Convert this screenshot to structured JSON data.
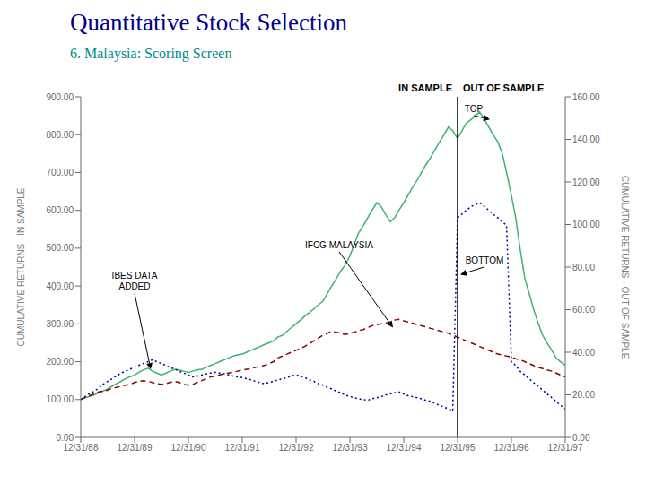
{
  "chart_data": {
    "type": "line",
    "title": "Quantitative Stock Selection",
    "subtitle": "6. Malaysia: Scoring Screen",
    "title_color": "#00008B",
    "subtitle_color": "#008B8B",
    "ylabel": "CUMULATIVE RETURNS - IN SAMPLE",
    "y2label": "CUMULATIVE RETURNS - OUT OF SAMPLE",
    "grid": false,
    "xlim": [
      0,
      9
    ],
    "xticks": [
      {
        "value": 0,
        "label": "12/31/88"
      },
      {
        "value": 1,
        "label": "12/31/89"
      },
      {
        "value": 2,
        "label": "12/31/90"
      },
      {
        "value": 3,
        "label": "12/31/91"
      },
      {
        "value": 4,
        "label": "12/31/92"
      },
      {
        "value": 5,
        "label": "12/31/93"
      },
      {
        "value": 6,
        "label": "12/31/94"
      },
      {
        "value": 7,
        "label": "12/31/95"
      },
      {
        "value": 8,
        "label": "12/31/96"
      },
      {
        "value": 9,
        "label": "12/31/97"
      }
    ],
    "ylim": [
      0,
      900
    ],
    "yticks": [
      {
        "value": 0,
        "label": "0.00"
      },
      {
        "value": 100,
        "label": "100.00"
      },
      {
        "value": 200,
        "label": "200.00"
      },
      {
        "value": 300,
        "label": "300.00"
      },
      {
        "value": 400,
        "label": "400.00"
      },
      {
        "value": 500,
        "label": "500.00"
      },
      {
        "value": 600,
        "label": "600.00"
      },
      {
        "value": 700,
        "label": "700.00"
      },
      {
        "value": 800,
        "label": "800.00"
      },
      {
        "value": 900,
        "label": "900.00"
      }
    ],
    "y2lim": [
      0,
      160
    ],
    "y2ticks": [
      {
        "value": 0,
        "label": "0.00"
      },
      {
        "value": 20,
        "label": "20.00"
      },
      {
        "value": 40,
        "label": "40.00"
      },
      {
        "value": 60,
        "label": "60.00"
      },
      {
        "value": 80,
        "label": "80.00"
      },
      {
        "value": 100,
        "label": "100.00"
      },
      {
        "value": 120,
        "label": "120.00"
      },
      {
        "value": 140,
        "label": "140.00"
      },
      {
        "value": 160,
        "label": "160.00"
      }
    ],
    "reference_lines": [
      {
        "x": 7,
        "label_left": "IN SAMPLE",
        "label_right": "OUT OF SAMPLE"
      }
    ],
    "annotations": [
      {
        "text": "TOP",
        "x": 7.3,
        "y": 860,
        "arrow_x": 7.6,
        "arrow_y": 840
      },
      {
        "text": "BOTTOM",
        "x": 7.5,
        "y": 460,
        "arrow_x": 7.05,
        "arrow_y": 430
      },
      {
        "text": "IFCG MALAYSIA",
        "x": 4.8,
        "y": 500,
        "arrow_x": 5.8,
        "arrow_y": 290
      },
      {
        "text": "IBES DATA\nADDED",
        "x": 1.0,
        "y": 390,
        "arrow_x": 1.3,
        "arrow_y": 180
      }
    ],
    "x": [
      0,
      0.08,
      0.16,
      0.25,
      0.33,
      0.41,
      0.5,
      0.58,
      0.66,
      0.75,
      0.83,
      0.91,
      1.0,
      1.08,
      1.16,
      1.25,
      1.33,
      1.41,
      1.5,
      1.58,
      1.66,
      1.75,
      1.83,
      1.91,
      2.0,
      2.08,
      2.16,
      2.25,
      2.33,
      2.41,
      2.5,
      2.58,
      2.66,
      2.75,
      2.83,
      2.91,
      3.0,
      3.08,
      3.16,
      3.25,
      3.33,
      3.41,
      3.5,
      3.58,
      3.66,
      3.75,
      3.83,
      3.91,
      4.0,
      4.08,
      4.16,
      4.25,
      4.33,
      4.41,
      4.5,
      4.58,
      4.66,
      4.75,
      4.83,
      4.91,
      5.0,
      5.08,
      5.16,
      5.25,
      5.33,
      5.41,
      5.5,
      5.58,
      5.66,
      5.75,
      5.83,
      5.91,
      6.0,
      6.08,
      6.16,
      6.25,
      6.33,
      6.41,
      6.5,
      6.58,
      6.66,
      6.75,
      6.83,
      6.91,
      7.0,
      7.08,
      7.16,
      7.25,
      7.33,
      7.41,
      7.5,
      7.58,
      7.66,
      7.75,
      7.83,
      7.91,
      8.0,
      8.08,
      8.16,
      8.25,
      8.33,
      8.41,
      8.5,
      8.58,
      8.66,
      8.75,
      8.83,
      8.91,
      9.0
    ],
    "series": [
      {
        "color": "#3CB371",
        "line_style": "solid",
        "values": [
          100,
          105,
          108,
          112,
          118,
          122,
          128,
          135,
          142,
          148,
          155,
          160,
          165,
          172,
          178,
          183,
          175,
          170,
          165,
          170,
          175,
          180,
          178,
          175,
          172,
          175,
          178,
          180,
          185,
          190,
          195,
          200,
          205,
          210,
          215,
          218,
          220,
          225,
          230,
          235,
          240,
          245,
          250,
          255,
          265,
          270,
          280,
          290,
          300,
          310,
          320,
          330,
          340,
          350,
          360,
          380,
          400,
          420,
          440,
          455,
          480,
          510,
          540,
          560,
          580,
          600,
          620,
          610,
          590,
          570,
          580,
          600,
          620,
          640,
          660,
          680,
          700,
          720,
          740,
          760,
          780,
          800,
          820,
          810,
          790,
          810,
          830,
          840,
          850,
          860,
          840,
          820,
          800,
          780,
          750,
          700,
          640,
          580,
          500,
          420,
          380,
          340,
          300,
          270,
          250,
          230,
          210,
          200,
          190
        ]
      },
      {
        "color": "#8B0000",
        "line_style": "dashed",
        "values": [
          100,
          105,
          110,
          115,
          120,
          122,
          125,
          130,
          132,
          135,
          138,
          140,
          145,
          148,
          150,
          148,
          145,
          142,
          140,
          142,
          145,
          148,
          145,
          140,
          138,
          140,
          145,
          150,
          155,
          160,
          162,
          165,
          168,
          170,
          172,
          175,
          178,
          180,
          182,
          185,
          188,
          190,
          195,
          200,
          210,
          215,
          220,
          225,
          230,
          235,
          240,
          248,
          255,
          262,
          270,
          275,
          280,
          278,
          275,
          272,
          275,
          278,
          282,
          285,
          290,
          295,
          298,
          300,
          302,
          305,
          310,
          312,
          308,
          305,
          302,
          298,
          295,
          292,
          288,
          285,
          282,
          278,
          275,
          270,
          265,
          260,
          255,
          250,
          245,
          240,
          235,
          230,
          225,
          220,
          218,
          215,
          212,
          208,
          205,
          200,
          195,
          190,
          185,
          182,
          178,
          175,
          170,
          165,
          160
        ]
      },
      {
        "color": "#00008B",
        "line_style": "dotted",
        "values": [
          100,
          108,
          115,
          122,
          130,
          140,
          148,
          155,
          162,
          170,
          175,
          180,
          185,
          190,
          195,
          200,
          205,
          200,
          195,
          190,
          185,
          180,
          175,
          170,
          165,
          160,
          162,
          165,
          168,
          170,
          172,
          170,
          168,
          165,
          162,
          160,
          158,
          155,
          152,
          148,
          145,
          142,
          145,
          148,
          152,
          155,
          158,
          162,
          165,
          162,
          158,
          152,
          148,
          142,
          138,
          132,
          128,
          122,
          118,
          112,
          108,
          105,
          102,
          100,
          98,
          102,
          105,
          108,
          112,
          115,
          118,
          120,
          115,
          110,
          108,
          105,
          102,
          98,
          95,
          90,
          85,
          80,
          75,
          70,
          580,
          590,
          600,
          610,
          615,
          620,
          610,
          600,
          590,
          580,
          570,
          560,
          200,
          190,
          175,
          165,
          155,
          145,
          135,
          125,
          115,
          105,
          95,
          85,
          75
        ]
      }
    ]
  }
}
